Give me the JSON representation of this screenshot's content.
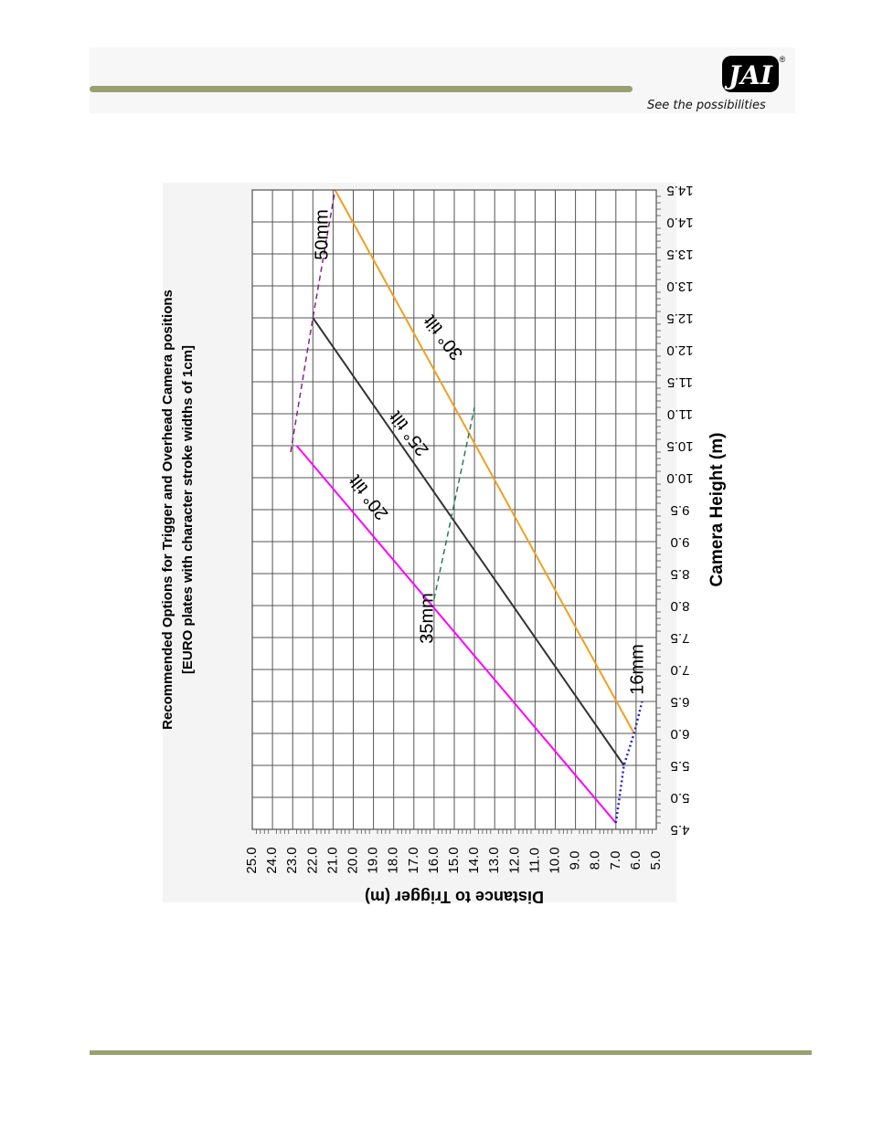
{
  "header": {
    "logo_text": "JAI",
    "registered_mark": "®",
    "tagline": "See the possibilities"
  },
  "colors": {
    "rule": "#9aa070",
    "tilt_20": "#ff00ff",
    "tilt_25": "#333333",
    "tilt_30": "#f0a020",
    "lens_16": "#2222cc",
    "lens_35": "#2a7a5a",
    "lens_50": "#882288",
    "grid": "#555555"
  },
  "chart_data": {
    "type": "line",
    "orientation": "rotated-90-clockwise",
    "title": "Recommended Options for Trigger and Overhead Camera positions",
    "subtitle": "[EURO plates with character stroke widths of 1cm]",
    "xlabel": "Camera Height (m)",
    "ylabel": "Distance to Trigger (m)",
    "xlim": [
      4.5,
      14.5
    ],
    "ylim": [
      5.0,
      25.0
    ],
    "x_ticks": [
      "4.5",
      "5.0",
      "5.5",
      "6.0",
      "6.5",
      "7.0",
      "7.5",
      "8.0",
      "8.5",
      "9.0",
      "9.5",
      "10.0",
      "10.5",
      "11.0",
      "11.5",
      "12.0",
      "12.5",
      "13.0",
      "13.5",
      "14.0",
      "14.5"
    ],
    "y_ticks": [
      "5.0",
      "6.0",
      "7.0",
      "8.0",
      "9.0",
      "10.0",
      "11.0",
      "12.0",
      "13.0",
      "14.0",
      "15.0",
      "16.0",
      "17.0",
      "18.0",
      "19.0",
      "20.0",
      "21.0",
      "22.0",
      "23.0",
      "24.0",
      "25.0"
    ],
    "grid": true,
    "series": [
      {
        "name": "20° tilt",
        "label": "20° tilt",
        "style": "solid",
        "color": "#ff00ff",
        "x": [
          4.6,
          10.5
        ],
        "y": [
          7.0,
          22.8
        ],
        "label_at": [
          9.7,
          19.2
        ]
      },
      {
        "name": "25° tilt",
        "label": "25° tilt",
        "style": "solid",
        "color": "#333333",
        "x": [
          5.5,
          12.5
        ],
        "y": [
          6.6,
          22.0
        ],
        "label_at": [
          10.7,
          17.2
        ]
      },
      {
        "name": "30° tilt",
        "label": "30° tilt",
        "style": "solid",
        "color": "#f0a020",
        "x": [
          6.0,
          14.5
        ],
        "y": [
          6.1,
          20.9
        ],
        "label_at": [
          12.2,
          15.5
        ]
      },
      {
        "name": "16mm",
        "label": "16mm",
        "style": "dotted",
        "color": "#2222cc",
        "x": [
          4.6,
          5.5,
          6.0,
          6.5
        ],
        "y": [
          7.0,
          6.6,
          6.1,
          5.7
        ],
        "label_at": [
          7.0,
          5.9
        ]
      },
      {
        "name": "35mm",
        "label": "35mm",
        "style": "dashed",
        "color": "#2a7a5a",
        "x": [
          8.1,
          11.1
        ],
        "y": [
          16.0,
          14.0
        ],
        "label_at": [
          7.8,
          16.3
        ]
      },
      {
        "name": "50mm",
        "label": "50mm",
        "style": "dashed",
        "color": "#882288",
        "x": [
          10.4,
          12.5,
          14.5
        ],
        "y": [
          23.1,
          22.0,
          20.9
        ],
        "label_at": [
          13.8,
          21.5
        ]
      }
    ]
  }
}
